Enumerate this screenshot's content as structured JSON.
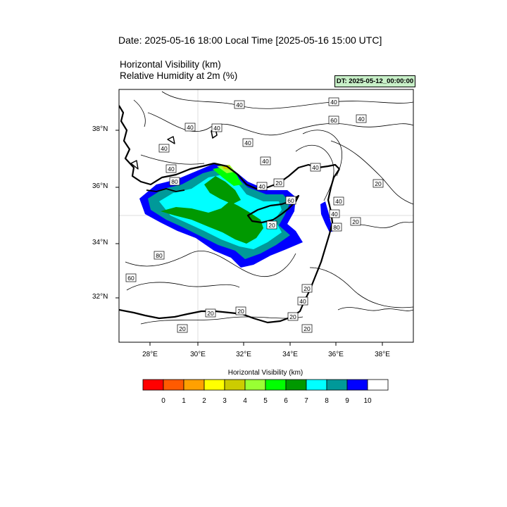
{
  "header": {
    "title": "Date: 2025-05-16  18:00 Local Time [2025-05-16  15:00 UTC]",
    "line1": "Horizontal Visibility   (km)",
    "line2": "Relative Humidity at 2m   (%)",
    "dt_badge": "DT: 2025-05-12_00:00:00"
  },
  "axes": {
    "x_labels": [
      "28°E",
      "30°E",
      "32°E",
      "34°E",
      "36°E",
      "38°E"
    ],
    "y_labels": [
      "38°N",
      "36°N",
      "34°N",
      "32°N"
    ],
    "lon_range": [
      26.7,
      39.3
    ],
    "lat_range": [
      30.6,
      39.5
    ]
  },
  "contour_labels": [
    "40",
    "40",
    "40",
    "40",
    "40",
    "40",
    "40",
    "40",
    "40",
    "60",
    "40",
    "20",
    "40",
    "40",
    "20",
    "40",
    "80",
    "20",
    "60",
    "20",
    "20",
    "20",
    "80",
    "60",
    "40",
    "20",
    "20",
    "20",
    "20",
    "80"
  ],
  "colorbar": {
    "title": "Horizontal Visibility  (km)",
    "ticks": [
      "0",
      "1",
      "2",
      "3",
      "4",
      "5",
      "6",
      "7",
      "8",
      "9",
      "10"
    ],
    "colors": [
      "#ff0000",
      "#ff5a00",
      "#ffa000",
      "#ffff00",
      "#cccc00",
      "#99ff33",
      "#00ff00",
      "#009900",
      "#00ffff",
      "#009999",
      "#0000ff",
      "#ffffff"
    ]
  }
}
